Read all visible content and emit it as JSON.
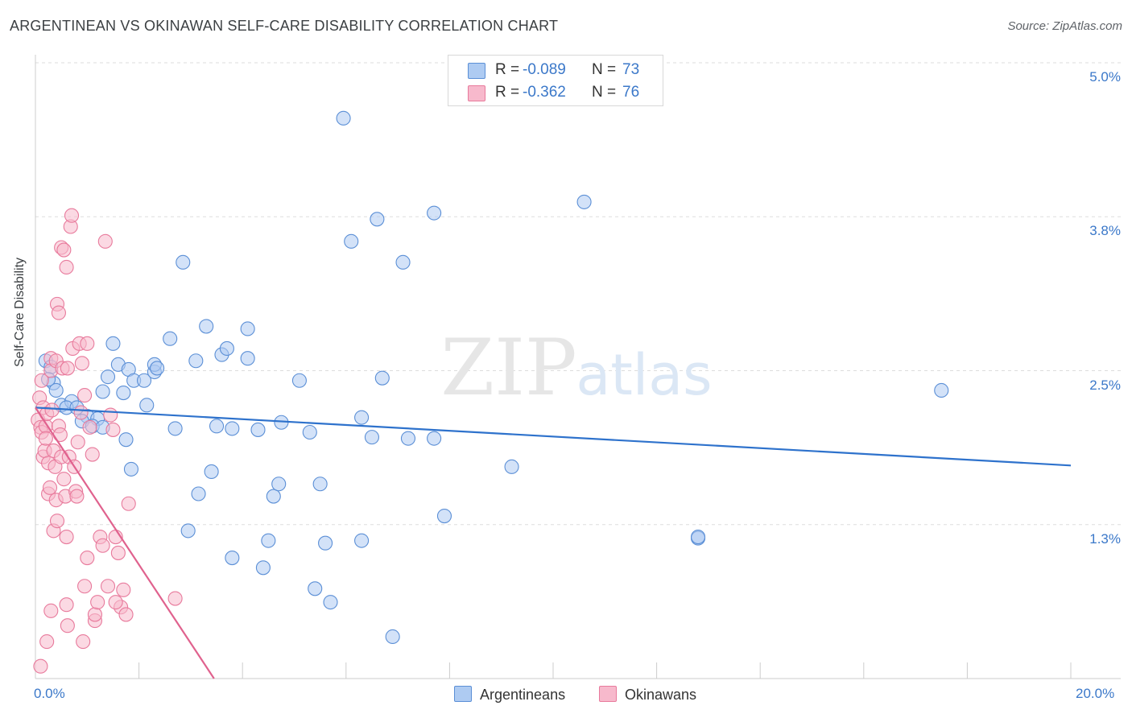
{
  "title": "ARGENTINEAN VS OKINAWAN SELF-CARE DISABILITY CORRELATION CHART",
  "source": "Source: ZipAtlas.com",
  "watermark": {
    "zip": "ZIP",
    "atlas": "atlas"
  },
  "legend": {
    "r_label": "R =",
    "n_label": "N =",
    "series": [
      {
        "name": "Argentineans",
        "r": "-0.089",
        "n": "73",
        "fill": "#aecbf2",
        "stroke": "#5b8fd6",
        "line": "#2e72cc"
      },
      {
        "name": "Okinawans",
        "r": "-0.362",
        "n": "76",
        "fill": "#f7b9cc",
        "stroke": "#e87a9c",
        "line": "#e0628e"
      }
    ]
  },
  "chart_data": {
    "type": "scatter",
    "title": "ARGENTINEAN VS OKINAWAN SELF-CARE DISABILITY CORRELATION CHART",
    "xlabel": "",
    "ylabel": "Self-Care Disability",
    "xlim": [
      0,
      20
    ],
    "ylim": [
      0,
      5.0
    ],
    "x_tick_labels": [
      "0.0%",
      "20.0%"
    ],
    "y_ticks": [
      1.25,
      2.5,
      3.75,
      5.0
    ],
    "y_tick_labels": [
      "1.3%",
      "2.5%",
      "3.8%",
      "5.0%"
    ],
    "grid": true,
    "series": [
      {
        "name": "Argentineans",
        "trend": {
          "x": [
            0,
            20
          ],
          "y": [
            2.2,
            1.73
          ]
        },
        "points": [
          [
            0.2,
            2.58
          ],
          [
            0.3,
            2.53
          ],
          [
            0.35,
            2.4
          ],
          [
            0.4,
            2.34
          ],
          [
            0.5,
            2.22
          ],
          [
            0.7,
            2.25
          ],
          [
            0.6,
            2.2
          ],
          [
            0.8,
            2.2
          ],
          [
            1.0,
            2.13
          ],
          [
            0.9,
            2.09
          ],
          [
            1.2,
            2.11
          ],
          [
            1.1,
            2.05
          ],
          [
            1.4,
            2.45
          ],
          [
            1.3,
            2.33
          ],
          [
            1.5,
            2.72
          ],
          [
            1.6,
            2.55
          ],
          [
            1.7,
            2.32
          ],
          [
            1.75,
            1.94
          ],
          [
            1.8,
            2.51
          ],
          [
            1.85,
            1.7
          ],
          [
            1.9,
            2.42
          ],
          [
            2.1,
            2.42
          ],
          [
            2.15,
            2.22
          ],
          [
            2.3,
            2.49
          ],
          [
            2.3,
            2.55
          ],
          [
            2.35,
            2.52
          ],
          [
            2.6,
            2.76
          ],
          [
            2.7,
            2.03
          ],
          [
            2.85,
            3.38
          ],
          [
            2.95,
            1.2
          ],
          [
            3.1,
            2.58
          ],
          [
            3.15,
            1.5
          ],
          [
            3.3,
            2.86
          ],
          [
            3.4,
            1.68
          ],
          [
            3.5,
            2.05
          ],
          [
            3.6,
            2.63
          ],
          [
            3.7,
            2.68
          ],
          [
            3.8,
            0.98
          ],
          [
            3.8,
            2.03
          ],
          [
            4.1,
            2.84
          ],
          [
            4.1,
            2.6
          ],
          [
            4.3,
            2.02
          ],
          [
            4.4,
            0.9
          ],
          [
            4.5,
            1.12
          ],
          [
            4.6,
            1.48
          ],
          [
            4.7,
            1.58
          ],
          [
            4.75,
            2.08
          ],
          [
            5.1,
            2.42
          ],
          [
            5.3,
            2.0
          ],
          [
            5.4,
            0.73
          ],
          [
            5.5,
            1.58
          ],
          [
            5.6,
            1.1
          ],
          [
            5.7,
            0.62
          ],
          [
            5.95,
            4.55
          ],
          [
            6.1,
            3.55
          ],
          [
            6.3,
            1.12
          ],
          [
            6.3,
            2.12
          ],
          [
            6.5,
            1.96
          ],
          [
            6.6,
            3.73
          ],
          [
            6.7,
            2.44
          ],
          [
            6.9,
            0.34
          ],
          [
            7.1,
            3.38
          ],
          [
            7.2,
            1.95
          ],
          [
            7.7,
            3.78
          ],
          [
            7.7,
            1.95
          ],
          [
            7.9,
            1.32
          ],
          [
            9.2,
            1.72
          ],
          [
            10.6,
            3.87
          ],
          [
            12.8,
            1.14
          ],
          [
            12.8,
            1.15
          ],
          [
            17.5,
            2.34
          ],
          [
            1.3,
            2.04
          ],
          [
            0.25,
            2.43
          ]
        ]
      },
      {
        "name": "Okinawans",
        "trend": {
          "x": [
            0,
            3.45
          ],
          "y": [
            2.2,
            0.0
          ]
        },
        "points": [
          [
            0.05,
            2.1
          ],
          [
            0.08,
            2.28
          ],
          [
            0.1,
            2.04
          ],
          [
            0.12,
            2.0
          ],
          [
            0.15,
            2.2
          ],
          [
            0.15,
            1.8
          ],
          [
            0.18,
            1.85
          ],
          [
            0.2,
            2.05
          ],
          [
            0.2,
            1.95
          ],
          [
            0.22,
            2.15
          ],
          [
            0.25,
            1.75
          ],
          [
            0.25,
            1.5
          ],
          [
            0.28,
            1.55
          ],
          [
            0.3,
            2.6
          ],
          [
            0.3,
            2.5
          ],
          [
            0.32,
            2.18
          ],
          [
            0.35,
            1.2
          ],
          [
            0.35,
            1.85
          ],
          [
            0.38,
            1.72
          ],
          [
            0.4,
            2.58
          ],
          [
            0.4,
            1.45
          ],
          [
            0.42,
            3.04
          ],
          [
            0.45,
            2.97
          ],
          [
            0.45,
            2.05
          ],
          [
            0.48,
            1.98
          ],
          [
            0.5,
            3.5
          ],
          [
            0.5,
            1.8
          ],
          [
            0.52,
            2.52
          ],
          [
            0.55,
            3.48
          ],
          [
            0.55,
            1.62
          ],
          [
            0.58,
            1.48
          ],
          [
            0.6,
            3.34
          ],
          [
            0.6,
            0.6
          ],
          [
            0.62,
            2.52
          ],
          [
            0.62,
            0.43
          ],
          [
            0.65,
            1.8
          ],
          [
            0.68,
            3.67
          ],
          [
            0.7,
            3.76
          ],
          [
            0.72,
            2.68
          ],
          [
            0.75,
            1.72
          ],
          [
            0.78,
            1.52
          ],
          [
            0.8,
            1.48
          ],
          [
            0.82,
            1.92
          ],
          [
            0.85,
            2.72
          ],
          [
            0.88,
            2.16
          ],
          [
            0.9,
            2.56
          ],
          [
            0.95,
            2.3
          ],
          [
            1.0,
            2.72
          ],
          [
            1.0,
            0.98
          ],
          [
            1.05,
            2.04
          ],
          [
            1.1,
            1.82
          ],
          [
            1.15,
            0.47
          ],
          [
            1.15,
            0.52
          ],
          [
            1.2,
            0.62
          ],
          [
            1.25,
            1.15
          ],
          [
            1.3,
            1.08
          ],
          [
            1.35,
            3.55
          ],
          [
            1.4,
            0.75
          ],
          [
            1.45,
            2.14
          ],
          [
            1.5,
            2.02
          ],
          [
            1.55,
            1.15
          ],
          [
            1.6,
            1.02
          ],
          [
            1.65,
            0.58
          ],
          [
            1.7,
            0.72
          ],
          [
            1.75,
            0.52
          ],
          [
            1.8,
            1.42
          ],
          [
            0.92,
            0.3
          ],
          [
            0.95,
            0.75
          ],
          [
            1.55,
            0.62
          ],
          [
            2.7,
            0.65
          ],
          [
            0.3,
            0.55
          ],
          [
            0.22,
            0.3
          ],
          [
            0.1,
            0.1
          ],
          [
            0.42,
            1.28
          ],
          [
            0.6,
            1.15
          ],
          [
            0.12,
            2.42
          ]
        ]
      }
    ]
  }
}
